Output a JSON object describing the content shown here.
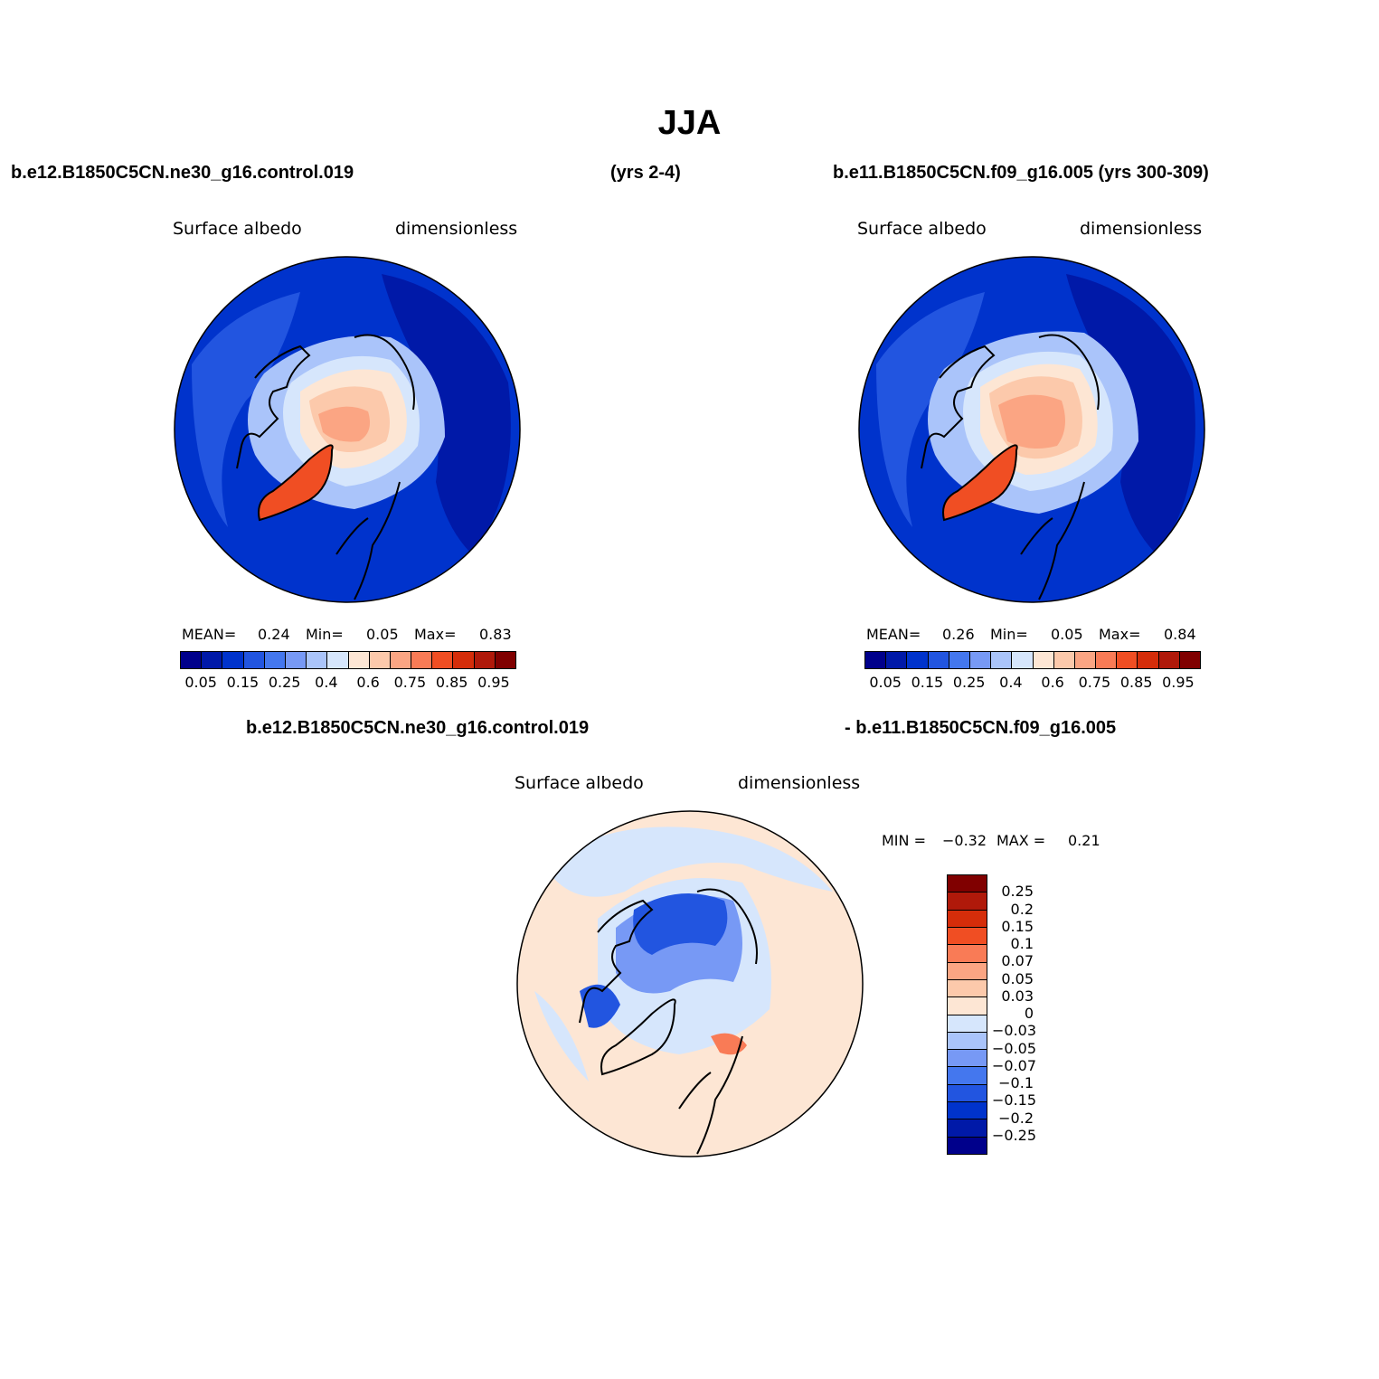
{
  "title": "JJA",
  "header": {
    "case1": "b.e12.B1850C5CN.ne30_g16.control.019",
    "years1": "(yrs 2-4)",
    "case2": "b.e11.B1850C5CN.f09_g16.005 (yrs 300-309)",
    "diff_left": "b.e12.B1850C5CN.ne30_g16.control.019",
    "diff_right": "- b.e11.B1850C5CN.f09_g16.005"
  },
  "panels": [
    {
      "variable": "Surface albedo",
      "units": "dimensionless",
      "mean_label": "MEAN=",
      "mean": "0.24",
      "min_label": "Min=",
      "min": "0.05",
      "max_label": "Max=",
      "max": "0.83"
    },
    {
      "variable": "Surface albedo",
      "units": "dimensionless",
      "mean_label": "MEAN=",
      "mean": "0.26",
      "min_label": "Min=",
      "min": "0.05",
      "max_label": "Max=",
      "max": "0.84"
    }
  ],
  "difference": {
    "variable": "Surface albedo",
    "units": "dimensionless",
    "min_label": "MIN =",
    "min": "−0.32",
    "max_label": "MAX =",
    "max": "0.21"
  },
  "colorbar_abs": {
    "colors": [
      "#00008b",
      "#0019a8",
      "#0033cc",
      "#2255e0",
      "#4477ee",
      "#7799f5",
      "#aac4fa",
      "#d6e6fc",
      "#fde6d4",
      "#fcc9ab",
      "#fba583",
      "#f97b56",
      "#f04e23",
      "#d52d0a",
      "#b0190a",
      "#800000"
    ],
    "labels": [
      "0.05",
      "0.15",
      "0.25",
      "0.4",
      "0.6",
      "0.75",
      "0.85",
      "0.95"
    ]
  },
  "colorbar_diff": {
    "colors": [
      "#800000",
      "#b0190a",
      "#d52d0a",
      "#f04e23",
      "#f97b56",
      "#fba583",
      "#fcc9ab",
      "#fde6d4",
      "#d6e6fc",
      "#aac4fa",
      "#7799f5",
      "#4477ee",
      "#2255e0",
      "#0033cc",
      "#0019a8",
      "#00008b"
    ],
    "labels": [
      "0.25",
      "0.2",
      "0.15",
      "0.1",
      "0.07",
      "0.05",
      "0.03",
      "0",
      "−0.03",
      "−0.05",
      "−0.07",
      "−0.1",
      "−0.15",
      "−0.2",
      "−0.25"
    ]
  },
  "map_colors": {
    "ocean_low": "#0033cc",
    "ocean_dark": "#0019a8",
    "land_mid": "#2255e0",
    "land_light": "#4477ee",
    "snow_light": "#aac4fa",
    "ice_pale": "#d6e6fc",
    "ice_cream": "#fde6d4",
    "ice_peach": "#fcc9ab",
    "ice_salmon": "#fba583",
    "greenland": "#f04e23",
    "diff_bg": "#fde6d4",
    "diff_neg1": "#d6e6fc",
    "diff_neg2": "#7799f5",
    "diff_neg3": "#2255e0",
    "diff_pos": "#f97b56"
  }
}
